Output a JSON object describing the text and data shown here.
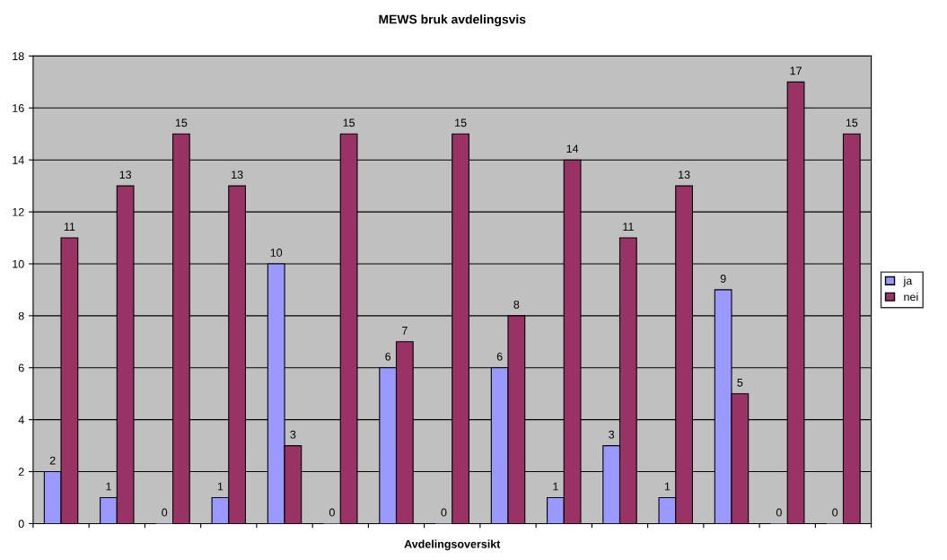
{
  "chart_data": {
    "type": "bar",
    "title": "MEWS bruk avdelingsvis",
    "xlabel": "Avdelingsoversikt",
    "categories": [
      null,
      null,
      null,
      null,
      null,
      null,
      null,
      null,
      null,
      null,
      null,
      null,
      null,
      null,
      null
    ],
    "series": [
      {
        "name": "ja",
        "color": "#9999ff",
        "values": [
          2,
          1,
          0,
          1,
          10,
          0,
          6,
          0,
          6,
          1,
          3,
          1,
          9,
          0,
          0
        ]
      },
      {
        "name": "nei",
        "color": "#993366",
        "values": [
          11,
          13,
          15,
          13,
          3,
          15,
          7,
          15,
          8,
          14,
          11,
          13,
          5,
          17,
          15
        ]
      }
    ],
    "ylim": [
      0,
      18
    ],
    "yticks": [
      0,
      2,
      4,
      6,
      8,
      10,
      12,
      14,
      16,
      18
    ],
    "grid": "y",
    "legend": "right",
    "data_labels": true
  }
}
